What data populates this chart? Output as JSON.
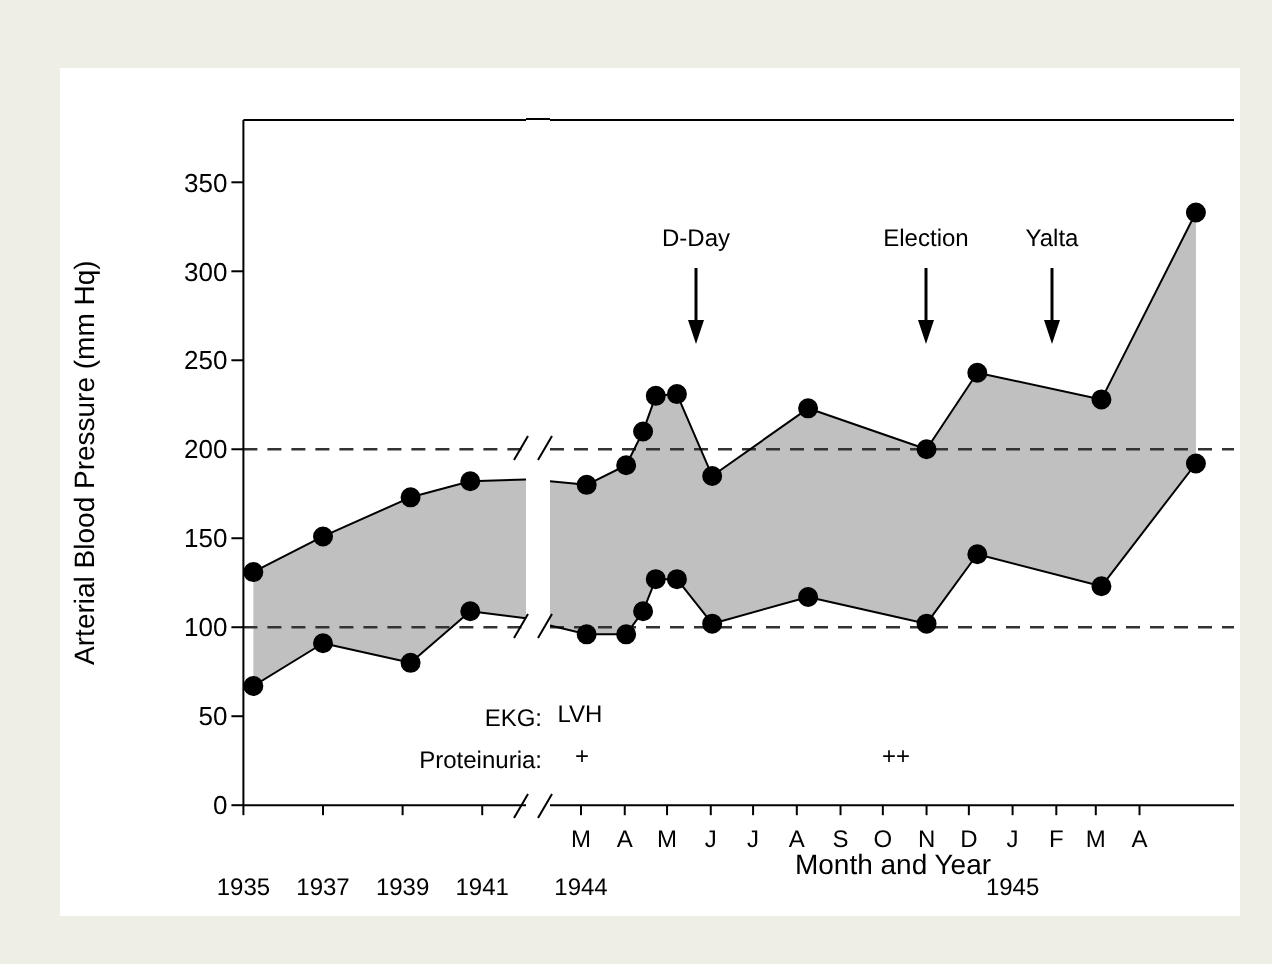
{
  "chart_data": [
    {
      "type": "line",
      "ylabel": "Arterial Blood Pressure (mm Hq)",
      "x": [
        1935.25,
        1937,
        1939.2,
        1940.7,
        1942.1
      ],
      "xlim": [
        1935,
        1942.1
      ],
      "xticks": [
        1935,
        1937,
        1939,
        1941
      ],
      "ylim": [
        0,
        385
      ],
      "yticks": [
        0,
        50,
        100,
        150,
        200,
        250,
        300,
        350
      ],
      "series": [
        {
          "type": "line",
          "color": "#000000",
          "marker": "circle",
          "values": [
            131,
            151,
            173,
            182,
            183
          ],
          "lower": [
            67,
            91,
            80,
            109,
            105
          ],
          "upper": [
            131,
            151,
            173,
            182,
            183
          ]
        },
        {
          "type": "line",
          "color": "#000000",
          "marker": "circle",
          "values": [
            67,
            91,
            80,
            109,
            105
          ]
        }
      ],
      "ref_lines": [
        {
          "axis": "y",
          "value": 100,
          "color": "#333333",
          "line_style": "dashed"
        },
        {
          "axis": "y",
          "value": 200,
          "color": "#333333",
          "line_style": "dashed"
        }
      ],
      "annotations": [
        "EKG:",
        "Proteinuria:"
      ],
      "tick_labels": "xy",
      "grid": false,
      "legend": false
    },
    {
      "type": "line",
      "xlabel": "Month and Year",
      "x": [
        "1944-02-08",
        "1944-03-05",
        "1944-04-02",
        "1944-04-14",
        "1944-04-23",
        "1944-05-08",
        "1944-06-02",
        "1944-08-09",
        "1944-11-01",
        "1944-12-07",
        "1945-03-05",
        "1945-05-11"
      ],
      "xlim": [
        "1944-02-08",
        "1945-06-07"
      ],
      "xticks": [
        {
          "value": "1944-03-01",
          "label": "M\n1944"
        },
        {
          "value": "1944-04-01",
          "label": "A"
        },
        {
          "value": "1944-05-01",
          "label": "M"
        },
        {
          "value": "1944-06-01",
          "label": "J"
        },
        {
          "value": "1944-07-01",
          "label": "J"
        },
        {
          "value": "1944-08-01",
          "label": "A"
        },
        {
          "value": "1944-09-01",
          "label": "S"
        },
        {
          "value": "1944-10-01",
          "label": "O"
        },
        {
          "value": "1944-11-01",
          "label": "N"
        },
        {
          "value": "1944-12-01",
          "label": "D"
        },
        {
          "value": "1945-01-01",
          "label": "J\n1945"
        },
        {
          "value": "1945-02-01",
          "label": "F"
        },
        {
          "value": "1945-03-01",
          "label": "M"
        },
        {
          "value": "1945-04-01",
          "label": "A"
        }
      ],
      "ylim": [
        0,
        385
      ],
      "series": [
        {
          "type": "line",
          "color": "#000000",
          "marker": "circle",
          "values": [
            182,
            180,
            191,
            210,
            230,
            231,
            185,
            223,
            200,
            243,
            228,
            333
          ],
          "lower": [
            101,
            96,
            96,
            109,
            127,
            127,
            102,
            117,
            102,
            141,
            123,
            192
          ],
          "upper": [
            182,
            180,
            191,
            210,
            230,
            231,
            185,
            223,
            200,
            243,
            228,
            333
          ]
        },
        {
          "type": "line",
          "color": "#000000",
          "marker": "circle",
          "values": [
            101,
            96,
            96,
            109,
            127,
            127,
            102,
            117,
            102,
            141,
            123,
            192
          ]
        }
      ],
      "ref_lines": [
        {
          "axis": "y",
          "value": 100,
          "color": "#333333",
          "line_style": "dashed"
        },
        {
          "axis": "y",
          "value": 200,
          "color": "#333333",
          "line_style": "dashed"
        }
      ],
      "annotations": [
        "LVH",
        "+",
        "++",
        "D-Day",
        "Election",
        "Yalta"
      ],
      "tick_labels": "x",
      "grid": false,
      "legend": false
    }
  ]
}
